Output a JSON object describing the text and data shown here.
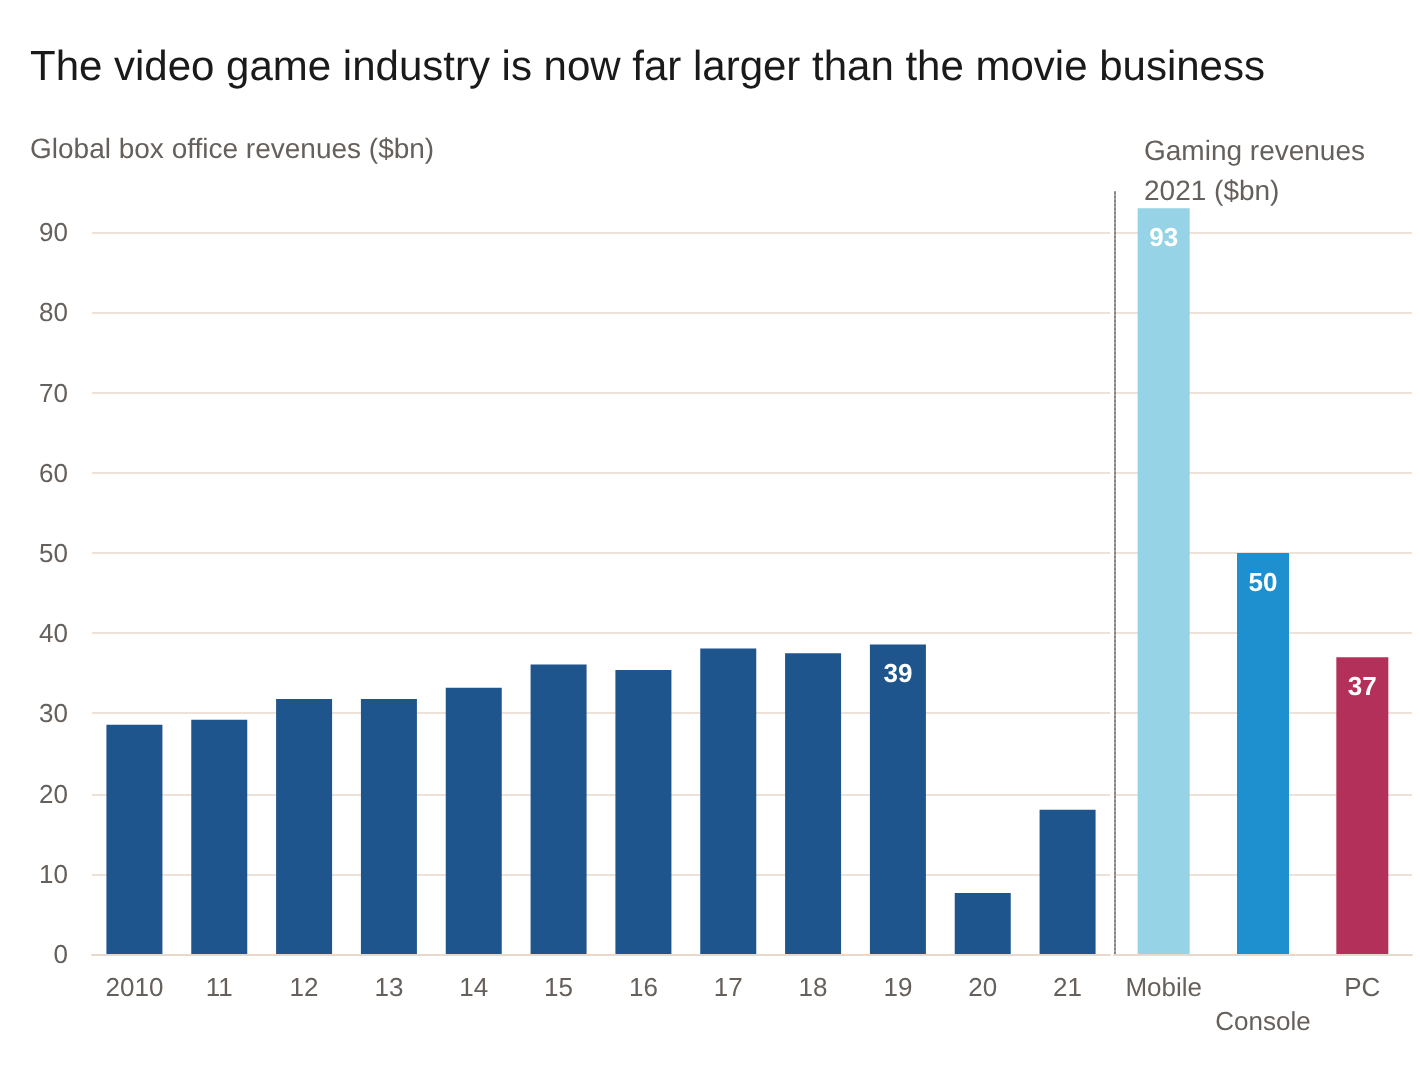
{
  "chart_data": [
    {
      "type": "bar",
      "title": "The video game industry is now far larger than the movie business",
      "ylabel": "Global box office revenues ($bn)",
      "categories": [
        "2010",
        "11",
        "12",
        "13",
        "14",
        "15",
        "16",
        "17",
        "18",
        "19",
        "20",
        "21"
      ],
      "values": [
        28.6,
        29.2,
        31.8,
        31.8,
        33.2,
        36.1,
        35.4,
        38.1,
        37.5,
        38.6,
        7.6,
        18.0
      ],
      "value_labels": [
        null,
        null,
        null,
        null,
        null,
        null,
        null,
        null,
        null,
        "39",
        null,
        null
      ],
      "color": "#1f558d",
      "ylim": [
        0,
        90
      ],
      "yticks": [
        0,
        10,
        20,
        30,
        40,
        50,
        60,
        70,
        80,
        90
      ],
      "grid": "y"
    },
    {
      "type": "bar",
      "ylabel": "Gaming revenues 2021 ($bn)",
      "categories": [
        "Mobile",
        "Console",
        "PC"
      ],
      "values": [
        93,
        50,
        37
      ],
      "colors": [
        "#96d3e7",
        "#1e8fcf",
        "#b3305b"
      ],
      "data_labels": true,
      "ylim": [
        0,
        95
      ],
      "yticks": [
        0,
        10,
        20,
        30,
        40,
        50,
        60,
        70,
        80,
        90
      ],
      "grid": "y",
      "tick_labels": "x"
    }
  ]
}
